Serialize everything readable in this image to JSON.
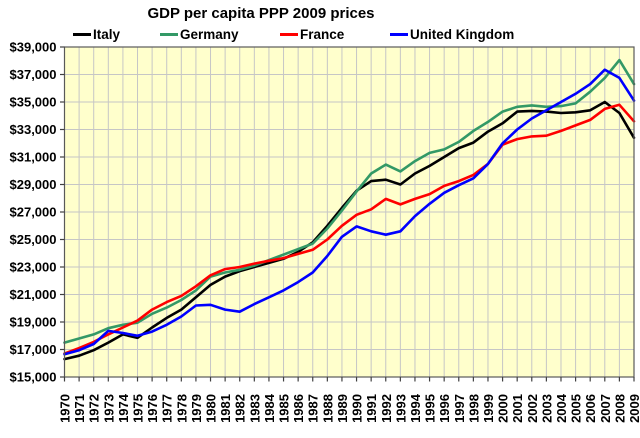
{
  "chart": {
    "title": "GDP per capita PPP 2009 prices",
    "plot_bg_color": "#FFFFCC",
    "outer_bg_color": "#FFFFFF",
    "gridline_color": "#C6C6C6",
    "border_color": "#595959",
    "tick_color": "#404040",
    "label_color": "#000000"
  },
  "legend": {
    "items": [
      {
        "label": "Italy",
        "color": "#000000"
      },
      {
        "label": "Germany",
        "color": "#339966"
      },
      {
        "label": "France",
        "color": "#FF0000"
      },
      {
        "label": "United Kingdom",
        "color": "#0000FF"
      }
    ]
  },
  "chart_data": {
    "type": "line",
    "title": "GDP per capita PPP 2009 prices",
    "xlabel": "",
    "ylabel": "",
    "ylim": [
      15000,
      39000
    ],
    "ytick_step": 2000,
    "ytick_values": [
      39000,
      37000,
      35000,
      33000,
      31000,
      29000,
      27000,
      25000,
      23000,
      21000,
      19000,
      17000,
      15000
    ],
    "ytick_labels": [
      "$39,000",
      "$37,000",
      "$35,000",
      "$33,000",
      "$31,000",
      "$29,000",
      "$27,000",
      "$25,000",
      "$23,000",
      "$21,000",
      "$19,000",
      "$17,000",
      "$15,000"
    ],
    "grid": true,
    "legend_position": "top",
    "x": [
      1970,
      1971,
      1972,
      1973,
      1974,
      1975,
      1976,
      1977,
      1978,
      1979,
      1980,
      1981,
      1982,
      1983,
      1984,
      1985,
      1986,
      1987,
      1988,
      1989,
      1990,
      1991,
      1992,
      1993,
      1994,
      1995,
      1996,
      1997,
      1998,
      1999,
      2000,
      2001,
      2002,
      2003,
      2004,
      2005,
      2006,
      2007,
      2008,
      2009
    ],
    "series": [
      {
        "name": "Italy",
        "color": "#000000",
        "values": [
          16300,
          16550,
          16950,
          17500,
          18100,
          17850,
          18600,
          19300,
          19900,
          20800,
          21700,
          22300,
          22700,
          23000,
          23300,
          23600,
          24100,
          24800,
          26000,
          27300,
          28550,
          29250,
          29350,
          29000,
          29800,
          30350,
          31000,
          31650,
          32050,
          32850,
          33450,
          34300,
          34350,
          34300,
          34200,
          34250,
          34400,
          35000,
          34200,
          32400
        ]
      },
      {
        "name": "Germany",
        "color": "#339966",
        "values": [
          17500,
          17800,
          18100,
          18550,
          18800,
          18950,
          19600,
          20050,
          20600,
          21300,
          22300,
          22600,
          22800,
          23100,
          23500,
          23900,
          24300,
          24700,
          25800,
          27100,
          28500,
          29800,
          30450,
          29950,
          30700,
          31300,
          31550,
          32100,
          32900,
          33550,
          34300,
          34650,
          34750,
          34650,
          34700,
          34900,
          35750,
          36750,
          38050,
          36300
        ]
      },
      {
        "name": "France",
        "color": "#FF0000",
        "values": [
          16700,
          17100,
          17550,
          18100,
          18600,
          19100,
          19900,
          20450,
          20900,
          21600,
          22400,
          22850,
          23000,
          23250,
          23450,
          23650,
          23950,
          24250,
          25000,
          26000,
          26800,
          27200,
          27950,
          27550,
          27950,
          28300,
          28900,
          29250,
          29700,
          30500,
          31900,
          32300,
          32500,
          32550,
          32900,
          33300,
          33700,
          34500,
          34800,
          33600
        ]
      },
      {
        "name": "United Kingdom",
        "color": "#0000FF",
        "values": [
          16650,
          16950,
          17400,
          18350,
          18200,
          18000,
          18300,
          18800,
          19400,
          20200,
          20250,
          19900,
          19750,
          20300,
          20800,
          21300,
          21900,
          22600,
          23800,
          25200,
          25950,
          25600,
          25350,
          25600,
          26700,
          27600,
          28400,
          28950,
          29450,
          30500,
          32000,
          33000,
          33800,
          34400,
          35000,
          35600,
          36300,
          37350,
          36750,
          35100
        ]
      }
    ]
  }
}
